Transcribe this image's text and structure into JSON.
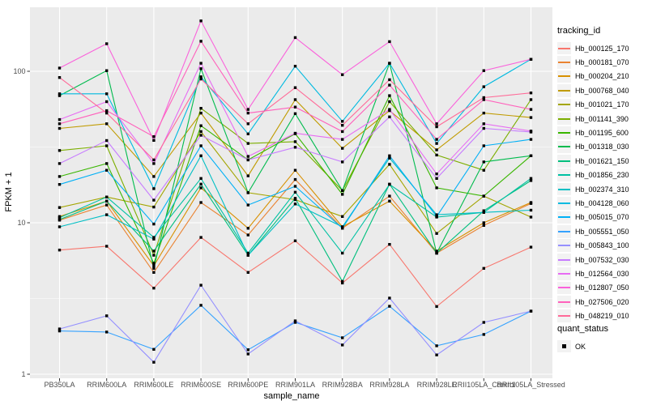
{
  "figure": {
    "panel_background": "#EBEBEB",
    "gridline_color": "#FFFFFF",
    "tick_color": "#333333",
    "tick_label_color": "#4D4D4D",
    "point_color": "#000000",
    "legend_key_background": "#F2F2F2"
  },
  "axes": {
    "x_title": "sample_name",
    "y_title": "FPKM + 1"
  },
  "legend": {
    "tracking_title": "tracking_id",
    "quant_title": "quant_status",
    "quant_items": [
      {
        "label": "OK",
        "shape": "black-square"
      }
    ]
  },
  "chart_data": {
    "type": "line",
    "title": "",
    "xlabel": "sample_name",
    "ylabel": "FPKM + 1",
    "y_scale": "log10",
    "y_ticks": [
      1,
      10,
      100
    ],
    "y_minor_ticks": [
      3.162,
      31.62
    ],
    "ylim_log10": [
      0,
      2.42
    ],
    "grid": "on",
    "legend_position": "right",
    "point_shape": "filled-square",
    "categories": [
      "PB350LA",
      "RRIM600LA",
      "RRIM600LE",
      "RRIM600SE",
      "RRIM600PE",
      "RRIM901LA",
      "RRIM928BA",
      "RRIM928LA",
      "RRIM928LE",
      "RRII105LA_Control",
      "RRII105LA_Stressed"
    ],
    "series": [
      {
        "name": "Hb_000125_170",
        "color": "#F8766D",
        "values": [
          6.6,
          7.0,
          3.7,
          8.0,
          4.7,
          7.6,
          4.0,
          7.2,
          2.8,
          5.0,
          6.9
        ]
      },
      {
        "name": "Hb_000181_070",
        "color": "#EA8331",
        "values": [
          10.4,
          13.1,
          4.7,
          13.6,
          8.3,
          19.3,
          9.2,
          15.0,
          6.3,
          9.6,
          13.4
        ]
      },
      {
        "name": "Hb_000204_210",
        "color": "#D89000",
        "values": [
          11.0,
          13.9,
          5.2,
          17.0,
          9.2,
          22.2,
          9.4,
          13.9,
          6.5,
          10.0,
          13.6
        ]
      },
      {
        "name": "Hb_000768_040",
        "color": "#C09B00",
        "values": [
          42,
          45,
          20.2,
          53,
          20.4,
          65,
          31,
          55,
          30.3,
          53,
          49.5
        ]
      },
      {
        "name": "Hb_001021_170",
        "color": "#A3A500",
        "values": [
          12.6,
          14.8,
          12.7,
          40,
          15.8,
          14.2,
          11.0,
          24.3,
          8.5,
          15.0,
          10.9
        ]
      },
      {
        "name": "Hb_001141_390",
        "color": "#7CAE00",
        "values": [
          30,
          32.2,
          6.1,
          57,
          33.4,
          34.3,
          16.3,
          63,
          28,
          22.2,
          65
        ]
      },
      {
        "name": "Hb_001195_600",
        "color": "#39B600",
        "values": [
          20.2,
          24.6,
          5.4,
          43.7,
          26,
          38.7,
          15.4,
          69,
          17,
          15.0,
          27.7
        ]
      },
      {
        "name": "Hb_001318_030",
        "color": "#00BB4E",
        "values": [
          69,
          101,
          5.0,
          104,
          15.8,
          52.5,
          16.3,
          113,
          6.3,
          25.2,
          27.7
        ]
      },
      {
        "name": "Hb_001621_150",
        "color": "#00BF7D",
        "values": [
          10.5,
          13.9,
          6.5,
          18,
          6.1,
          14.5,
          4.1,
          18,
          6.3,
          12,
          19
        ]
      },
      {
        "name": "Hb_001856_230",
        "color": "#00C1A3",
        "values": [
          10.8,
          14.8,
          8.0,
          19.6,
          6.3,
          15.9,
          6.3,
          17.9,
          10.9,
          11.7,
          19.6
        ]
      },
      {
        "name": "Hb_002374_310",
        "color": "#00BFC4",
        "values": [
          9.4,
          11.3,
          7.8,
          27.7,
          6.1,
          13.3,
          9.4,
          26.7,
          11.3,
          11.7,
          12.1
        ]
      },
      {
        "name": "Hb_004128_060",
        "color": "#00BAE0",
        "values": [
          71,
          71,
          16.8,
          92,
          38.6,
          108,
          46.7,
          113,
          33.4,
          79,
          120
        ]
      },
      {
        "name": "Hb_005015_070",
        "color": "#00B0F6",
        "values": [
          17.9,
          22.2,
          9.8,
          32.2,
          13.1,
          17.4,
          9.2,
          27.7,
          11.0,
          32.2,
          35.5
        ]
      },
      {
        "name": "Hb_005551_050",
        "color": "#35A2FF",
        "values": [
          1.93,
          1.9,
          1.46,
          2.85,
          1.45,
          2.2,
          1.74,
          2.81,
          1.54,
          1.83,
          2.61
        ]
      },
      {
        "name": "Hb_005843_100",
        "color": "#9590FF",
        "values": [
          1.99,
          2.43,
          1.2,
          3.87,
          1.36,
          2.25,
          1.56,
          3.18,
          1.34,
          2.2,
          2.61
        ]
      },
      {
        "name": "Hb_007532_030",
        "color": "#C77CFF",
        "values": [
          24.6,
          34.9,
          14.1,
          37.8,
          26,
          31.5,
          25.2,
          50,
          19.6,
          42,
          39.7
        ]
      },
      {
        "name": "Hb_012564_030",
        "color": "#E76BF3",
        "values": [
          48,
          63,
          24.6,
          113,
          27.4,
          39,
          35.5,
          56,
          21,
          45,
          40.3
        ]
      },
      {
        "name": "Hb_012807_050",
        "color": "#FA62DB",
        "values": [
          105,
          152,
          35,
          215,
          56,
          167,
          95,
          157,
          45,
          101,
          120
        ]
      },
      {
        "name": "Hb_027506_020",
        "color": "#FF62BC",
        "values": [
          45,
          55,
          37,
          158,
          53,
          58,
          40,
          81,
          35.5,
          65,
          56
        ]
      },
      {
        "name": "Hb_048219_010",
        "color": "#FF6A98",
        "values": [
          91,
          53,
          26,
          89,
          45,
          78,
          44,
          88,
          43,
          67,
          72
        ]
      }
    ]
  }
}
